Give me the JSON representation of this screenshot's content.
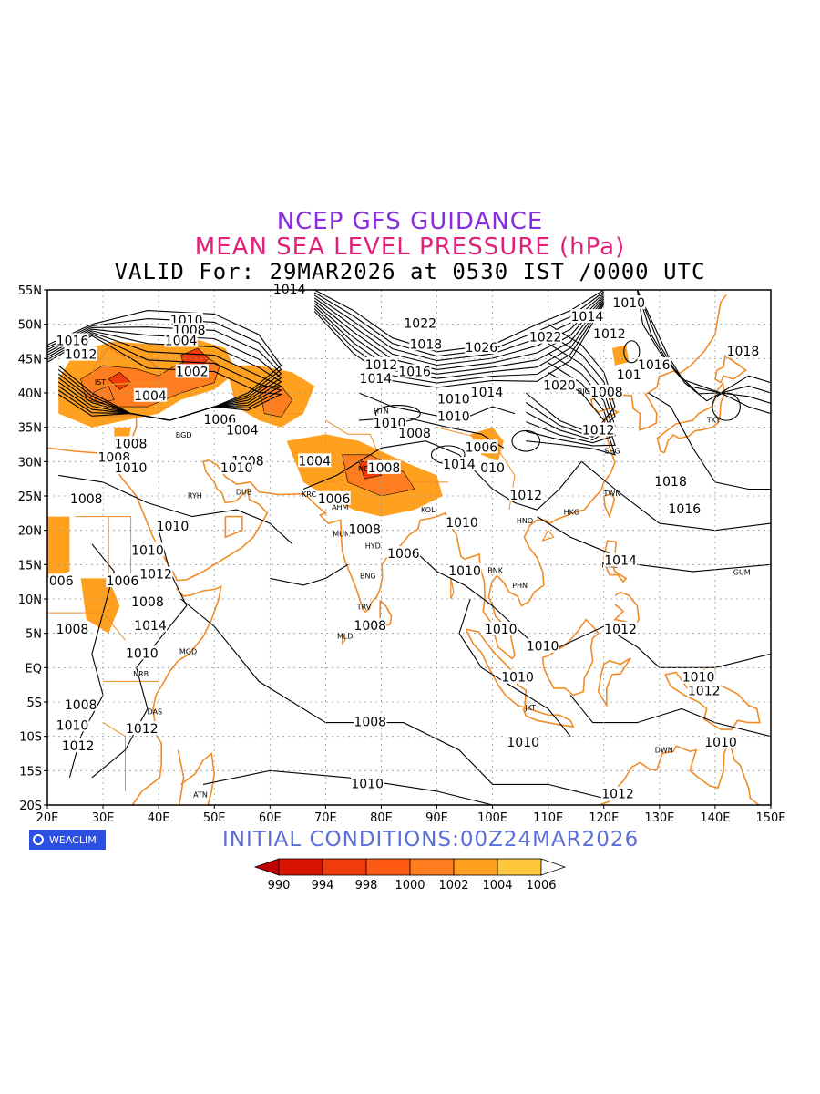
{
  "titles": {
    "line1": "NCEP GFS GUIDANCE",
    "line2": "MEAN SEA LEVEL PRESSURE (hPa)",
    "line3": "VALID For: 29MAR2026 at 0530 IST /0000 UTC"
  },
  "initial_conditions": "INITIAL CONDITIONS:00Z24MAR2026",
  "logo_text": "WEACLIM",
  "axes": {
    "lon_ticks": [
      "20E",
      "30E",
      "40E",
      "50E",
      "60E",
      "70E",
      "80E",
      "90E",
      "100E",
      "110E",
      "120E",
      "130E",
      "140E",
      "150E"
    ],
    "lat_ticks": [
      "55N",
      "50N",
      "45N",
      "40N",
      "35N",
      "30N",
      "25N",
      "20N",
      "15N",
      "10N",
      "5N",
      "EQ",
      "5S",
      "10S",
      "15S",
      "20S"
    ]
  },
  "colorbar": {
    "labels": [
      "990",
      "994",
      "998",
      "1000",
      "1002",
      "1004",
      "1006"
    ],
    "colors": [
      "#c00000",
      "#d81400",
      "#f03c0a",
      "#ff5a14",
      "#ff7d1e",
      "#ffa01e",
      "#ffc83c",
      "#ffffff"
    ]
  },
  "colors": {
    "coast": "#f08c28",
    "contour": "#000000",
    "fill_low": "#ffa01e",
    "fill_mid": "#ff7d1e",
    "fill_high": "#f03c0a"
  },
  "isobar_labels": [
    {
      "text": "1010",
      "lon": 45,
      "lat": 50.5
    },
    {
      "text": "1008",
      "lon": 45.5,
      "lat": 49
    },
    {
      "text": "1004",
      "lon": 44,
      "lat": 47.5
    },
    {
      "text": "1002",
      "lon": 46,
      "lat": 43
    },
    {
      "text": "1004",
      "lon": 38.5,
      "lat": 39.5
    },
    {
      "text": "1016",
      "lon": 24.5,
      "lat": 47.5
    },
    {
      "text": "1012",
      "lon": 26,
      "lat": 45.5
    },
    {
      "text": "1014",
      "lon": 63.5,
      "lat": 55
    },
    {
      "text": "1006",
      "lon": 51,
      "lat": 36
    },
    {
      "text": "1004",
      "lon": 55,
      "lat": 34.5
    },
    {
      "text": "1008",
      "lon": 56,
      "lat": 30
    },
    {
      "text": "1010",
      "lon": 54,
      "lat": 29
    },
    {
      "text": "1004",
      "lon": 68,
      "lat": 30
    },
    {
      "text": "1006",
      "lon": 71.5,
      "lat": 24.5
    },
    {
      "text": "1008",
      "lon": 77,
      "lat": 20
    },
    {
      "text": "1008",
      "lon": 35,
      "lat": 32.5
    },
    {
      "text": "1008",
      "lon": 32,
      "lat": 30.5
    },
    {
      "text": "1010",
      "lon": 35,
      "lat": 29
    },
    {
      "text": "1008",
      "lon": 27,
      "lat": 24.5
    },
    {
      "text": "1010",
      "lon": 42.5,
      "lat": 20.5
    },
    {
      "text": "1010",
      "lon": 38,
      "lat": 17
    },
    {
      "text": "1006",
      "lon": 33.5,
      "lat": 12.5
    },
    {
      "text": "1012",
      "lon": 39.5,
      "lat": 13.5
    },
    {
      "text": "1008",
      "lon": 38,
      "lat": 9.5
    },
    {
      "text": "1008",
      "lon": 24.5,
      "lat": 5.5
    },
    {
      "text": "1014",
      "lon": 38.5,
      "lat": 6
    },
    {
      "text": "1010",
      "lon": 37,
      "lat": 2
    },
    {
      "text": "1008",
      "lon": 26,
      "lat": -5.5
    },
    {
      "text": "1010",
      "lon": 24.5,
      "lat": -8.5
    },
    {
      "text": "1012",
      "lon": 37,
      "lat": -9
    },
    {
      "text": "1012",
      "lon": 25.5,
      "lat": -11.5
    },
    {
      "text": "006",
      "lon": 22.5,
      "lat": 12.5
    },
    {
      "text": "1008",
      "lon": 78,
      "lat": 6
    },
    {
      "text": "1008",
      "lon": 78,
      "lat": -8
    },
    {
      "text": "1010",
      "lon": 77.5,
      "lat": -17
    },
    {
      "text": "1010",
      "lon": 101.5,
      "lat": 5.5
    },
    {
      "text": "1010",
      "lon": 109,
      "lat": 3
    },
    {
      "text": "1010",
      "lon": 104.5,
      "lat": -1.5
    },
    {
      "text": "1010",
      "lon": 105.5,
      "lat": -11
    },
    {
      "text": "1012",
      "lon": 123,
      "lat": 5.5
    },
    {
      "text": "1010",
      "lon": 137,
      "lat": -1.5
    },
    {
      "text": "1012",
      "lon": 138,
      "lat": -3.5
    },
    {
      "text": "1010",
      "lon": 141,
      "lat": -11
    },
    {
      "text": "1012",
      "lon": 122.5,
      "lat": -18.5
    },
    {
      "text": "1014",
      "lon": 123,
      "lat": 15.5
    },
    {
      "text": "1016",
      "lon": 134.5,
      "lat": 23
    },
    {
      "text": "1018",
      "lon": 132,
      "lat": 27
    },
    {
      "text": "1018",
      "lon": 145,
      "lat": 46
    },
    {
      "text": "1016",
      "lon": 129,
      "lat": 44
    },
    {
      "text": "101",
      "lon": 124.5,
      "lat": 42.5
    },
    {
      "text": "1008",
      "lon": 120.5,
      "lat": 40
    },
    {
      "text": "1012",
      "lon": 119,
      "lat": 34.5
    },
    {
      "text": "1020",
      "lon": 112,
      "lat": 41
    },
    {
      "text": "1012",
      "lon": 121,
      "lat": 48.5
    },
    {
      "text": "1014",
      "lon": 117,
      "lat": 51
    },
    {
      "text": "1010",
      "lon": 124.5,
      "lat": 53
    },
    {
      "text": "1022",
      "lon": 109.5,
      "lat": 48
    },
    {
      "text": "1022",
      "lon": 87,
      "lat": 50
    },
    {
      "text": "1018",
      "lon": 88,
      "lat": 47
    },
    {
      "text": "1026",
      "lon": 98,
      "lat": 46.5
    },
    {
      "text": "1012",
      "lon": 80,
      "lat": 44
    },
    {
      "text": "1016",
      "lon": 86,
      "lat": 43
    },
    {
      "text": "1014",
      "lon": 79,
      "lat": 42
    },
    {
      "text": "1014",
      "lon": 99,
      "lat": 40
    },
    {
      "text": "1010",
      "lon": 93,
      "lat": 39
    },
    {
      "text": "1010",
      "lon": 93,
      "lat": 36.5
    },
    {
      "text": "1010",
      "lon": 81.5,
      "lat": 35.5
    },
    {
      "text": "1008",
      "lon": 86,
      "lat": 34
    },
    {
      "text": "1006",
      "lon": 98,
      "lat": 32
    },
    {
      "text": "1014",
      "lon": 94,
      "lat": 29.5
    },
    {
      "text": "010",
      "lon": 100,
      "lat": 29
    },
    {
      "text": "1012",
      "lon": 106,
      "lat": 25
    },
    {
      "text": "1010",
      "lon": 94.5,
      "lat": 21
    },
    {
      "text": "1010",
      "lon": 95,
      "lat": 14
    },
    {
      "text": "1006",
      "lon": 84,
      "lat": 16.5
    },
    {
      "text": "1008",
      "lon": 80.5,
      "lat": 29
    }
  ],
  "cities": [
    {
      "text": "IST",
      "lon": 29.5,
      "lat": 41.2
    },
    {
      "text": "BGD",
      "lon": 44.5,
      "lat": 33.5
    },
    {
      "text": "RYH",
      "lon": 46.5,
      "lat": 24.7
    },
    {
      "text": "DUB",
      "lon": 55.3,
      "lat": 25.2
    },
    {
      "text": "KRC",
      "lon": 67,
      "lat": 24.9
    },
    {
      "text": "AHM",
      "lon": 72.6,
      "lat": 23
    },
    {
      "text": "MUM",
      "lon": 72.9,
      "lat": 19.1
    },
    {
      "text": "HYD",
      "lon": 78.5,
      "lat": 17.4
    },
    {
      "text": "BNG",
      "lon": 77.6,
      "lat": 13
    },
    {
      "text": "TRV",
      "lon": 76.9,
      "lat": 8.5
    },
    {
      "text": "MLD",
      "lon": 73.5,
      "lat": 4.2
    },
    {
      "text": "NDL",
      "lon": 77.2,
      "lat": 28.6
    },
    {
      "text": "KOL",
      "lon": 88.4,
      "lat": 22.6
    },
    {
      "text": "HTN",
      "lon": 80,
      "lat": 37
    },
    {
      "text": "BJG",
      "lon": 116.4,
      "lat": 39.9
    },
    {
      "text": "TKY",
      "lon": 139.7,
      "lat": 35.7
    },
    {
      "text": "SHG",
      "lon": 121.5,
      "lat": 31.2
    },
    {
      "text": "TWN",
      "lon": 121.5,
      "lat": 25
    },
    {
      "text": "HKG",
      "lon": 114.2,
      "lat": 22.3
    },
    {
      "text": "HNO",
      "lon": 105.8,
      "lat": 21
    },
    {
      "text": "MNL",
      "lon": 121,
      "lat": 14.6
    },
    {
      "text": "GUM",
      "lon": 144.8,
      "lat": 13.5
    },
    {
      "text": "BNK",
      "lon": 100.5,
      "lat": 13.8
    },
    {
      "text": "PHN",
      "lon": 104.9,
      "lat": 11.6
    },
    {
      "text": "JKT",
      "lon": 106.8,
      "lat": -6.2
    },
    {
      "text": "DWN",
      "lon": 130.8,
      "lat": -12.4
    },
    {
      "text": "MGD",
      "lon": 45.3,
      "lat": 2
    },
    {
      "text": "NRB",
      "lon": 36.8,
      "lat": -1.3
    },
    {
      "text": "DAS",
      "lon": 39.3,
      "lat": -6.8
    },
    {
      "text": "ATN",
      "lon": 47.5,
      "lat": -18.9
    }
  ]
}
